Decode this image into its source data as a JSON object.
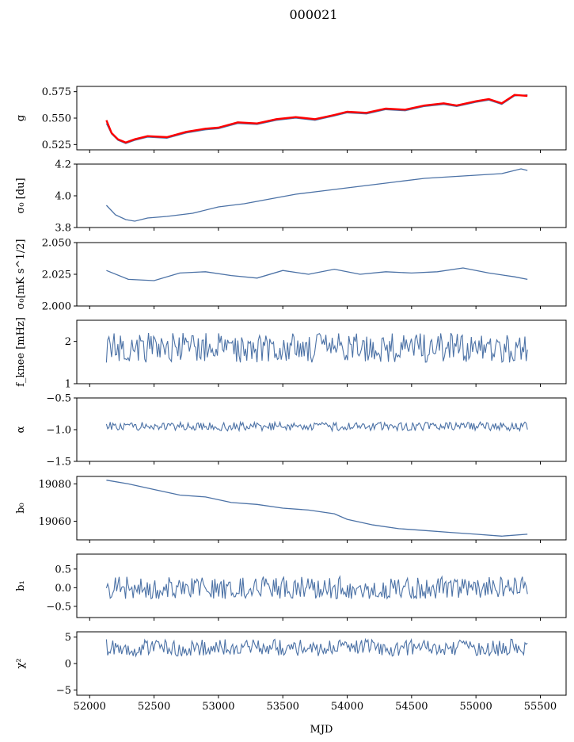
{
  "title": "000021",
  "xlabel": "MJD",
  "colors": {
    "series": "#4c72a6",
    "model": "#ff0000",
    "axis": "#000000"
  },
  "chart_data": [
    {
      "type": "line",
      "ylabel": "g",
      "ylim": [
        0.52,
        0.58
      ],
      "yticks": [
        "0.525",
        "0.550",
        "0.575"
      ],
      "ytick_values": [
        0.525,
        0.55,
        0.575
      ],
      "series": [
        {
          "color": "#4c72a6",
          "values": [
            [
              52130,
              0.545
            ],
            [
              52170,
              0.535
            ],
            [
              52220,
              0.529
            ],
            [
              52280,
              0.526
            ],
            [
              52350,
              0.529
            ],
            [
              52450,
              0.532
            ],
            [
              52600,
              0.531
            ],
            [
              52750,
              0.536
            ],
            [
              52900,
              0.539
            ],
            [
              53000,
              0.54
            ],
            [
              53150,
              0.545
            ],
            [
              53300,
              0.544
            ],
            [
              53450,
              0.548
            ],
            [
              53600,
              0.55
            ],
            [
              53750,
              0.548
            ],
            [
              53900,
              0.552
            ],
            [
              54000,
              0.555
            ],
            [
              54150,
              0.554
            ],
            [
              54300,
              0.558
            ],
            [
              54450,
              0.557
            ],
            [
              54600,
              0.561
            ],
            [
              54750,
              0.563
            ],
            [
              54850,
              0.561
            ],
            [
              55000,
              0.565
            ],
            [
              55100,
              0.567
            ],
            [
              55200,
              0.563
            ],
            [
              55300,
              0.571
            ],
            [
              55400,
              0.572
            ]
          ]
        },
        {
          "color": "#ff0000",
          "values": [
            [
              52130,
              0.548
            ],
            [
              52170,
              0.536
            ],
            [
              52220,
              0.53
            ],
            [
              52280,
              0.527
            ],
            [
              52350,
              0.53
            ],
            [
              52450,
              0.533
            ],
            [
              52600,
              0.532
            ],
            [
              52750,
              0.537
            ],
            [
              52900,
              0.54
            ],
            [
              53000,
              0.541
            ],
            [
              53150,
              0.546
            ],
            [
              53300,
              0.545
            ],
            [
              53450,
              0.549
            ],
            [
              53600,
              0.551
            ],
            [
              53750,
              0.549
            ],
            [
              53900,
              0.553
            ],
            [
              54000,
              0.556
            ],
            [
              54150,
              0.555
            ],
            [
              54300,
              0.559
            ],
            [
              54450,
              0.558
            ],
            [
              54600,
              0.562
            ],
            [
              54750,
              0.564
            ],
            [
              54850,
              0.562
            ],
            [
              55000,
              0.566
            ],
            [
              55100,
              0.568
            ],
            [
              55200,
              0.564
            ],
            [
              55300,
              0.572
            ],
            [
              55400,
              0.571
            ]
          ]
        }
      ]
    },
    {
      "type": "line",
      "ylabel": "σ₀ [du]",
      "ylim": [
        3.8,
        4.2
      ],
      "yticks": [
        "3.8",
        "4.0",
        "4.2"
      ],
      "ytick_values": [
        3.8,
        4.0,
        4.2
      ],
      "series": [
        {
          "color": "#4c72a6",
          "values": [
            [
              52130,
              3.94
            ],
            [
              52200,
              3.88
            ],
            [
              52280,
              3.85
            ],
            [
              52350,
              3.84
            ],
            [
              52450,
              3.86
            ],
            [
              52600,
              3.87
            ],
            [
              52800,
              3.89
            ],
            [
              53000,
              3.93
            ],
            [
              53200,
              3.95
            ],
            [
              53400,
              3.98
            ],
            [
              53600,
              4.01
            ],
            [
              53800,
              4.03
            ],
            [
              54000,
              4.05
            ],
            [
              54200,
              4.07
            ],
            [
              54400,
              4.09
            ],
            [
              54600,
              4.11
            ],
            [
              54800,
              4.12
            ],
            [
              55000,
              4.13
            ],
            [
              55200,
              4.14
            ],
            [
              55350,
              4.17
            ],
            [
              55400,
              4.16
            ]
          ]
        }
      ]
    },
    {
      "type": "line",
      "ylabel": "σ₀[mK s^1/2]",
      "ylim": [
        2.0,
        2.05
      ],
      "yticks": [
        "2.000",
        "2.025",
        "2.050"
      ],
      "ytick_values": [
        2.0,
        2.025,
        2.05
      ],
      "series": [
        {
          "color": "#4c72a6",
          "values": [
            [
              52130,
              2.028
            ],
            [
              52300,
              2.021
            ],
            [
              52500,
              2.02
            ],
            [
              52700,
              2.026
            ],
            [
              52900,
              2.027
            ],
            [
              53100,
              2.024
            ],
            [
              53300,
              2.022
            ],
            [
              53500,
              2.028
            ],
            [
              53700,
              2.025
            ],
            [
              53900,
              2.029
            ],
            [
              54100,
              2.025
            ],
            [
              54300,
              2.027
            ],
            [
              54500,
              2.026
            ],
            [
              54700,
              2.027
            ],
            [
              54900,
              2.03
            ],
            [
              55100,
              2.026
            ],
            [
              55300,
              2.023
            ],
            [
              55400,
              2.021
            ]
          ]
        }
      ]
    },
    {
      "type": "line",
      "ylabel": "f_knee [mHz]",
      "ylim": [
        1,
        2.5
      ],
      "yticks": [
        "1",
        "2"
      ],
      "ytick_values": [
        1,
        2
      ],
      "noise": {
        "start": 52130,
        "end": 55400,
        "mean": 1.85,
        "amplitude": 0.35
      }
    },
    {
      "type": "line",
      "ylabel": "α",
      "ylim": [
        -1.5,
        -0.5
      ],
      "yticks": [
        "−1.5",
        "−1.0",
        "−0.5"
      ],
      "ytick_values": [
        -1.5,
        -1.0,
        -0.5
      ],
      "noise": {
        "start": 52130,
        "end": 55400,
        "mean": -0.95,
        "amplitude": 0.07
      }
    },
    {
      "type": "line",
      "ylabel": "b₀",
      "ylim": [
        19050,
        19084
      ],
      "yticks": [
        "19060",
        "19080"
      ],
      "ytick_values": [
        19060,
        19080
      ],
      "series": [
        {
          "color": "#4c72a6",
          "values": [
            [
              52130,
              19082
            ],
            [
              52300,
              19080
            ],
            [
              52500,
              19077
            ],
            [
              52700,
              19074
            ],
            [
              52900,
              19073
            ],
            [
              53100,
              19070
            ],
            [
              53300,
              19069
            ],
            [
              53500,
              19067
            ],
            [
              53700,
              19066
            ],
            [
              53900,
              19064
            ],
            [
              54000,
              19061
            ],
            [
              54200,
              19058
            ],
            [
              54400,
              19056
            ],
            [
              54600,
              19055
            ],
            [
              54800,
              19054
            ],
            [
              55000,
              19053
            ],
            [
              55200,
              19052
            ],
            [
              55400,
              19053
            ]
          ]
        }
      ]
    },
    {
      "type": "line",
      "ylabel": "b₁",
      "ylim": [
        -0.8,
        0.9
      ],
      "yticks": [
        "−0.5",
        "0.0",
        "0.5"
      ],
      "ytick_values": [
        -0.5,
        0.0,
        0.5
      ],
      "noise": {
        "start": 52130,
        "end": 55400,
        "mean": 0.0,
        "amplitude": 0.3
      }
    },
    {
      "type": "line",
      "ylabel": "χ²",
      "ylim": [
        -6,
        6
      ],
      "yticks": [
        "−5",
        "0",
        "5"
      ],
      "ytick_values": [
        -5,
        0,
        5
      ],
      "noise": {
        "start": 52130,
        "end": 55400,
        "mean": 3.0,
        "amplitude": 1.6
      }
    }
  ],
  "xlim": [
    51900,
    55700
  ],
  "xticks": [
    "52000",
    "52500",
    "53000",
    "53500",
    "54000",
    "54500",
    "55000",
    "55500"
  ],
  "xtick_values": [
    52000,
    52500,
    53000,
    53500,
    54000,
    54500,
    55000,
    55500
  ]
}
